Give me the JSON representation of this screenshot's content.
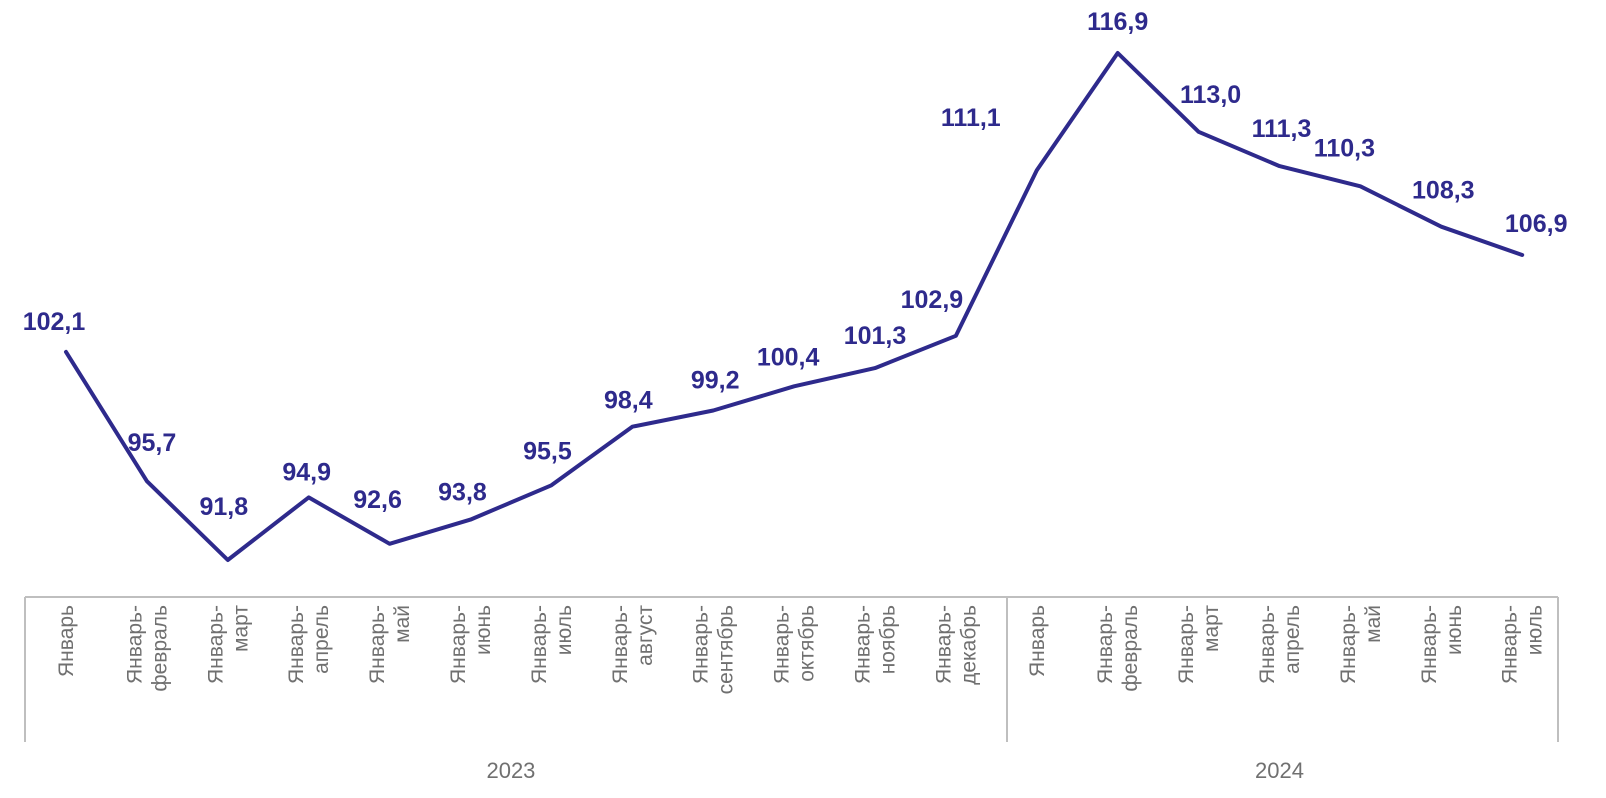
{
  "chart_data": {
    "type": "line",
    "title": "",
    "xlabel": "",
    "ylabel": "",
    "ylim": [
      90,
      118
    ],
    "grid": false,
    "legend": "none",
    "color": "#2e2a8c",
    "groups": [
      {
        "name": "2023",
        "count": 12
      },
      {
        "name": "2024",
        "count": 7
      }
    ],
    "categories": [
      [
        "Январь"
      ],
      [
        "Январь-",
        "февраль"
      ],
      [
        "Январь-",
        "март"
      ],
      [
        "Январь-",
        "апрель"
      ],
      [
        "Январь-",
        "май"
      ],
      [
        "Январь-",
        "июнь"
      ],
      [
        "Январь-",
        "июль"
      ],
      [
        "Январь-",
        "август"
      ],
      [
        "Январь-",
        "сентябрь"
      ],
      [
        "Январь-",
        "октябрь"
      ],
      [
        "Январь-",
        "ноябрь"
      ],
      [
        "Январь-",
        "декабрь"
      ],
      [
        "Январь"
      ],
      [
        "Январь-",
        "февраль"
      ],
      [
        "Январь-",
        "март"
      ],
      [
        "Январь-",
        "апрель"
      ],
      [
        "Январь-",
        "май"
      ],
      [
        "Январь-",
        "июнь"
      ],
      [
        "Январь-",
        "июль"
      ]
    ],
    "series": [
      {
        "values": [
          102.1,
          95.7,
          91.8,
          94.9,
          92.6,
          93.8,
          95.5,
          98.4,
          99.2,
          100.4,
          101.3,
          102.9,
          111.1,
          116.9,
          113.0,
          111.3,
          110.3,
          108.3,
          106.9
        ],
        "labels": [
          "102,1",
          "95,7",
          "91,8",
          "94,9",
          "92,6",
          "93,8",
          "95,5",
          "98,4",
          "99,2",
          "100,4",
          "101,3",
          "102,9",
          "111,1",
          "116,9",
          "113,0",
          "111,3",
          "110,3",
          "108,3",
          "106,9"
        ]
      }
    ]
  }
}
